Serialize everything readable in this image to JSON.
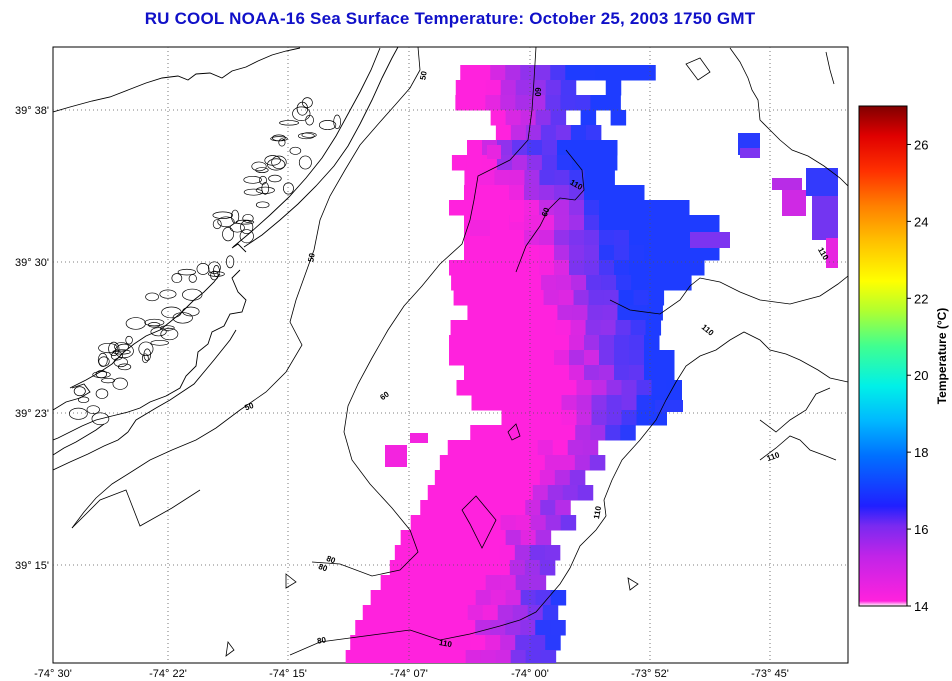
{
  "title": "RU COOL  NOAA-16  Sea Surface Temperature:  October 25, 2003 1750 GMT",
  "map": {
    "lon_ticks": [
      "-74° 30'",
      "-74° 22'",
      "-74° 15'",
      "-74° 07'",
      "-74° 00'",
      "-73° 52'",
      "-73° 45'"
    ],
    "lat_ticks": [
      "39° 38'",
      "39° 30'",
      "39° 23'",
      "39° 15'"
    ],
    "contour_labels": [
      "50",
      "50",
      "50",
      "60",
      "60",
      "60",
      "80",
      "80",
      "80",
      "110",
      "110",
      "110",
      "110",
      "110",
      "110"
    ],
    "colors": {
      "coastline": "#000000",
      "grid": "#555555",
      "land_bg": "#ffffff",
      "sst_cold": "#ff22dd",
      "sst_mid": "#8833ee",
      "sst_warm": "#1e3cff"
    },
    "sst_range_c": [
      14,
      16.5
    ]
  },
  "colorbar": {
    "label": "Temperature (°C)",
    "ticks": [
      "14",
      "16",
      "18",
      "20",
      "22",
      "24",
      "26"
    ],
    "range": [
      14,
      27
    ]
  }
}
